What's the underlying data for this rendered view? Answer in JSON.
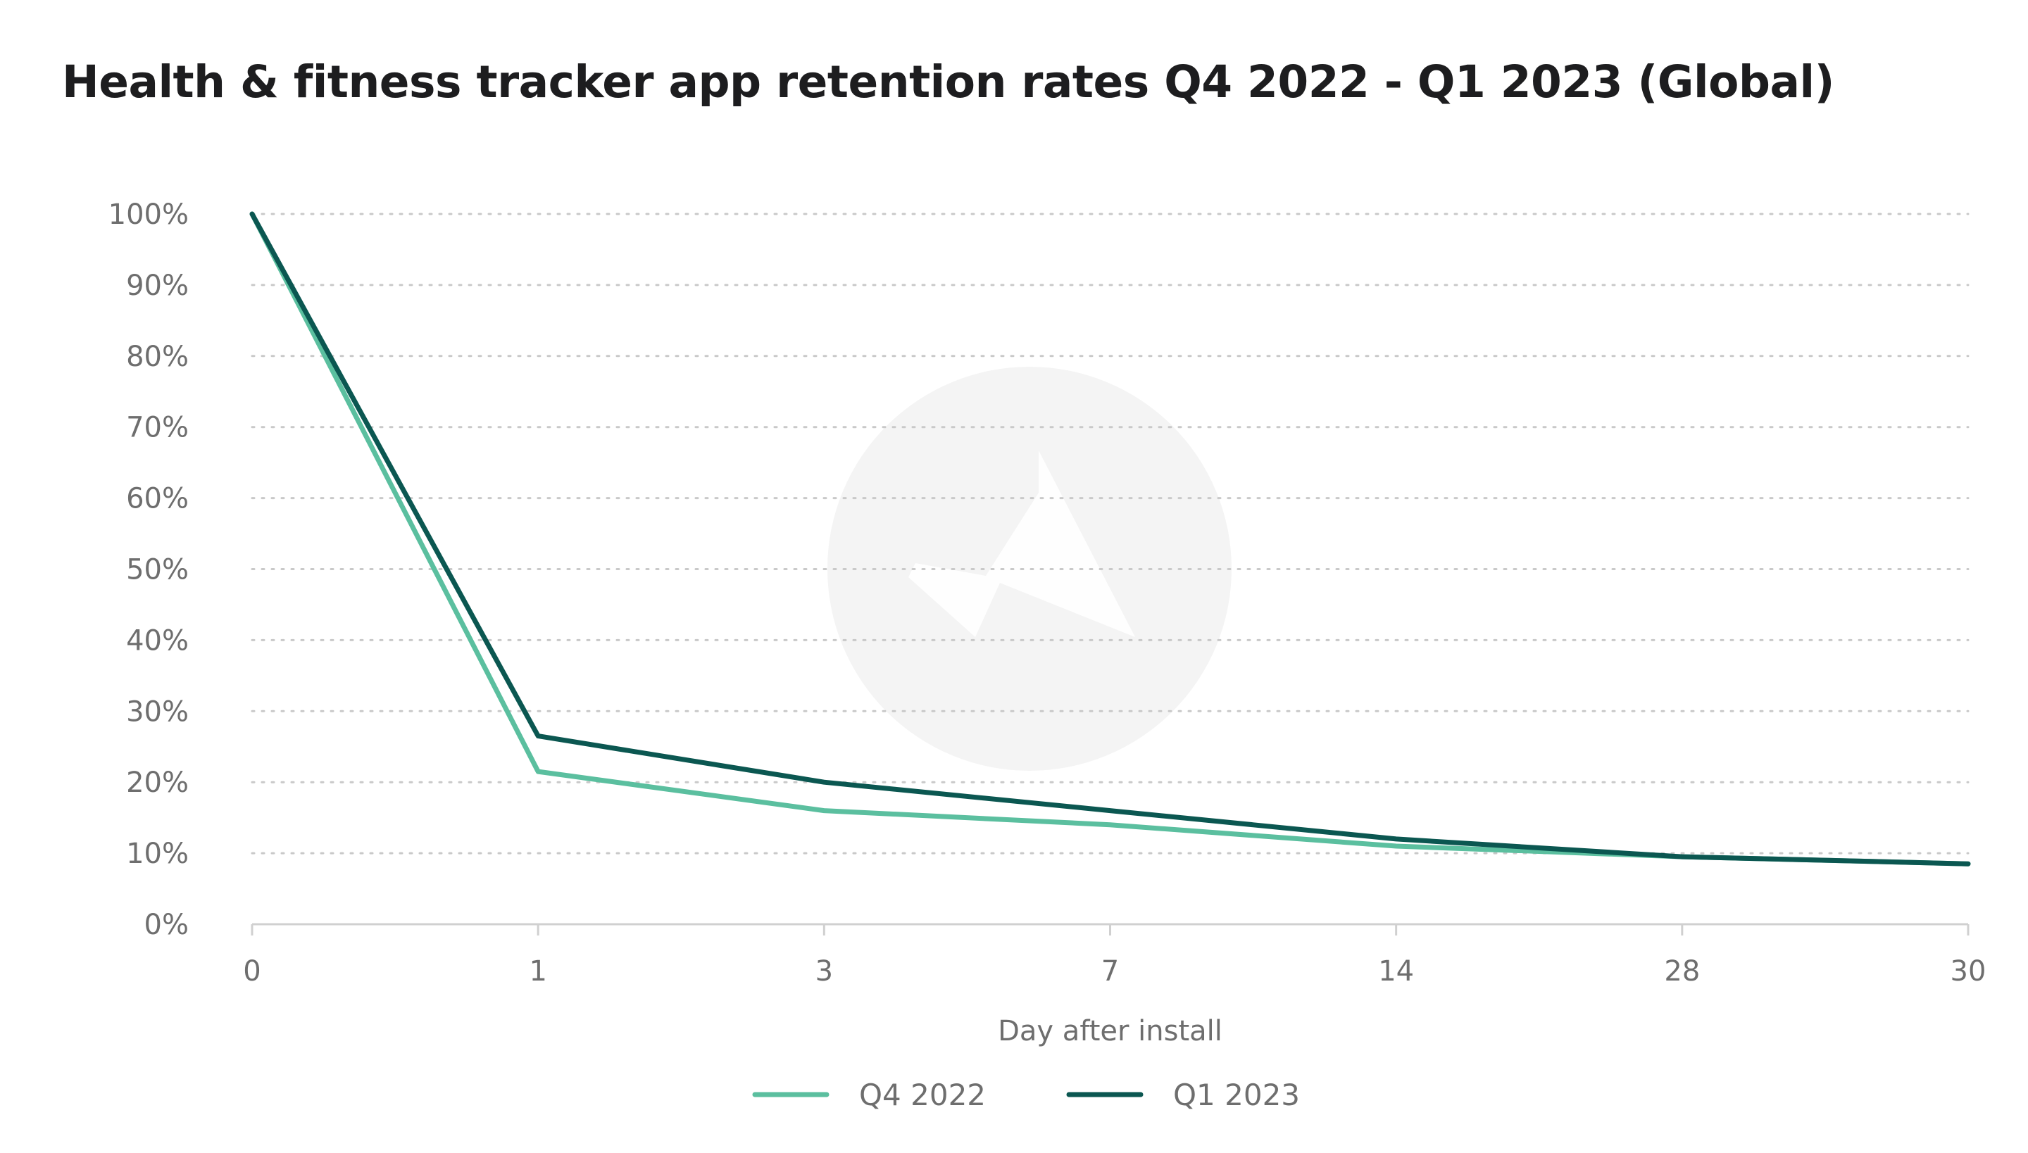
{
  "chart_data": {
    "type": "line",
    "title": "Health & fitness tracker app retention rates Q4 2022 - Q1 2023 (Global)",
    "xlabel": "Day after install",
    "ylabel": "",
    "categories": [
      "0",
      "1",
      "3",
      "7",
      "14",
      "28",
      "30"
    ],
    "y_ticks": [
      "0%",
      "10%",
      "20%",
      "30%",
      "40%",
      "50%",
      "60%",
      "70%",
      "80%",
      "90%",
      "100%"
    ],
    "ylim": [
      0,
      100
    ],
    "grid": "horizontal dotted",
    "legend_position": "bottom-center",
    "series": [
      {
        "name": "Q4 2022",
        "color": "#5bbf9f",
        "values": [
          100,
          21.5,
          16,
          14,
          11,
          9.5,
          8.5
        ]
      },
      {
        "name": "Q1 2023",
        "color": "#0b5751",
        "values": [
          100,
          26.5,
          20,
          16,
          12,
          9.5,
          8.5
        ]
      }
    ]
  },
  "watermark": {
    "icon": "adjust-logo-watermark"
  }
}
